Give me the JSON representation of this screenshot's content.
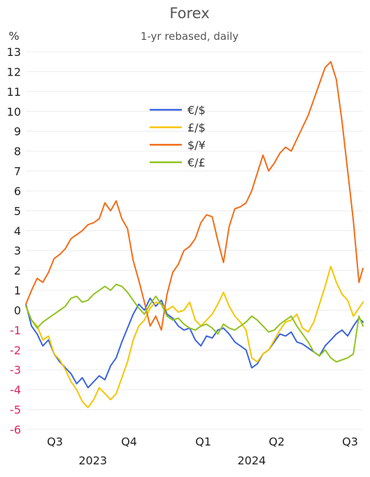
{
  "chart_data": {
    "type": "line",
    "title": "Forex",
    "subtitle": "1-yr rebased, daily",
    "ylabel": "%",
    "xlabel": "",
    "ylim": [
      -6,
      13
    ],
    "xlim": [
      "2023-07-10",
      "2024-08-31"
    ],
    "y_ticks": [
      13,
      12,
      11,
      10,
      9,
      8,
      7,
      6,
      5,
      4,
      3,
      2,
      1,
      0,
      -1,
      -2,
      -3,
      -4,
      -5,
      -6
    ],
    "negative_tick_color": "#e0245e",
    "x_quarter_labels": [
      {
        "label": "Q3",
        "x": "2023-08-15"
      },
      {
        "label": "Q4",
        "x": "2023-11-15"
      },
      {
        "label": "Q1",
        "x": "2024-02-15"
      },
      {
        "label": "Q2",
        "x": "2024-05-16"
      },
      {
        "label": "Q3",
        "x": "2024-08-15"
      }
    ],
    "x_year_labels": [
      {
        "label": "2023",
        "x": "2023-10-01"
      },
      {
        "label": "2024",
        "x": "2024-04-15"
      }
    ],
    "grid": true,
    "legend_position": "top-center",
    "series": [
      {
        "name": "€/$",
        "color": "#3a63e0",
        "points": [
          [
            "2023-07-10",
            0.3
          ],
          [
            "2023-07-17",
            -0.8
          ],
          [
            "2023-07-24",
            -1.2
          ],
          [
            "2023-07-31",
            -1.8
          ],
          [
            "2023-08-07",
            -1.5
          ],
          [
            "2023-08-14",
            -2.2
          ],
          [
            "2023-08-21",
            -2.6
          ],
          [
            "2023-08-28",
            -2.9
          ],
          [
            "2023-09-04",
            -3.2
          ],
          [
            "2023-09-11",
            -3.7
          ],
          [
            "2023-09-18",
            -3.4
          ],
          [
            "2023-09-25",
            -3.9
          ],
          [
            "2023-10-02",
            -3.6
          ],
          [
            "2023-10-09",
            -3.3
          ],
          [
            "2023-10-16",
            -3.5
          ],
          [
            "2023-10-23",
            -2.8
          ],
          [
            "2023-10-30",
            -2.4
          ],
          [
            "2023-11-06",
            -1.6
          ],
          [
            "2023-11-13",
            -0.9
          ],
          [
            "2023-11-20",
            -0.2
          ],
          [
            "2023-11-27",
            0.3
          ],
          [
            "2023-12-04",
            0.0
          ],
          [
            "2023-12-11",
            0.6
          ],
          [
            "2023-12-18",
            0.2
          ],
          [
            "2023-12-25",
            0.5
          ],
          [
            "2024-01-01",
            -0.2
          ],
          [
            "2024-01-08",
            -0.4
          ],
          [
            "2024-01-15",
            -0.8
          ],
          [
            "2024-01-22",
            -1.0
          ],
          [
            "2024-01-29",
            -0.9
          ],
          [
            "2024-02-05",
            -1.5
          ],
          [
            "2024-02-12",
            -1.8
          ],
          [
            "2024-02-19",
            -1.3
          ],
          [
            "2024-02-26",
            -1.4
          ],
          [
            "2024-03-04",
            -1.0
          ],
          [
            "2024-03-11",
            -0.9
          ],
          [
            "2024-03-18",
            -1.2
          ],
          [
            "2024-03-25",
            -1.6
          ],
          [
            "2024-04-01",
            -1.8
          ],
          [
            "2024-04-08",
            -2.0
          ],
          [
            "2024-04-15",
            -2.9
          ],
          [
            "2024-04-22",
            -2.7
          ],
          [
            "2024-04-29",
            -2.2
          ],
          [
            "2024-05-06",
            -2.0
          ],
          [
            "2024-05-13",
            -1.6
          ],
          [
            "2024-05-20",
            -1.2
          ],
          [
            "2024-05-27",
            -1.3
          ],
          [
            "2024-06-03",
            -1.1
          ],
          [
            "2024-06-10",
            -1.6
          ],
          [
            "2024-06-17",
            -1.7
          ],
          [
            "2024-06-24",
            -1.9
          ],
          [
            "2024-07-01",
            -2.1
          ],
          [
            "2024-07-08",
            -2.3
          ],
          [
            "2024-07-15",
            -1.8
          ],
          [
            "2024-07-22",
            -1.5
          ],
          [
            "2024-07-29",
            -1.2
          ],
          [
            "2024-08-05",
            -1.0
          ],
          [
            "2024-08-12",
            -1.3
          ],
          [
            "2024-08-19",
            -0.8
          ],
          [
            "2024-08-26",
            -0.4
          ],
          [
            "2024-08-31",
            -0.6
          ]
        ]
      },
      {
        "name": "£/$",
        "color": "#f7c400",
        "points": [
          [
            "2023-07-10",
            0.2
          ],
          [
            "2023-07-17",
            -0.5
          ],
          [
            "2023-07-24",
            -0.8
          ],
          [
            "2023-07-31",
            -1.5
          ],
          [
            "2023-08-07",
            -1.3
          ],
          [
            "2023-08-14",
            -2.2
          ],
          [
            "2023-08-21",
            -2.5
          ],
          [
            "2023-08-28",
            -3.0
          ],
          [
            "2023-09-04",
            -3.6
          ],
          [
            "2023-09-11",
            -4.0
          ],
          [
            "2023-09-18",
            -4.6
          ],
          [
            "2023-09-25",
            -4.9
          ],
          [
            "2023-10-02",
            -4.5
          ],
          [
            "2023-10-09",
            -3.9
          ],
          [
            "2023-10-16",
            -4.2
          ],
          [
            "2023-10-23",
            -4.5
          ],
          [
            "2023-10-30",
            -4.2
          ],
          [
            "2023-11-06",
            -3.4
          ],
          [
            "2023-11-13",
            -2.6
          ],
          [
            "2023-11-20",
            -1.5
          ],
          [
            "2023-11-27",
            -0.8
          ],
          [
            "2023-12-04",
            -0.5
          ],
          [
            "2023-12-11",
            0.1
          ],
          [
            "2023-12-18",
            0.4
          ],
          [
            "2023-12-25",
            0.3
          ],
          [
            "2024-01-01",
            0.0
          ],
          [
            "2024-01-08",
            0.2
          ],
          [
            "2024-01-15",
            -0.1
          ],
          [
            "2024-01-22",
            0.0
          ],
          [
            "2024-01-29",
            0.4
          ],
          [
            "2024-02-05",
            -0.5
          ],
          [
            "2024-02-12",
            -0.8
          ],
          [
            "2024-02-19",
            -0.5
          ],
          [
            "2024-02-26",
            -0.2
          ],
          [
            "2024-03-04",
            0.3
          ],
          [
            "2024-03-11",
            0.9
          ],
          [
            "2024-03-18",
            0.2
          ],
          [
            "2024-03-25",
            -0.3
          ],
          [
            "2024-04-01",
            -0.6
          ],
          [
            "2024-04-08",
            -1.0
          ],
          [
            "2024-04-15",
            -2.4
          ],
          [
            "2024-04-22",
            -2.6
          ],
          [
            "2024-04-29",
            -2.2
          ],
          [
            "2024-05-06",
            -2.0
          ],
          [
            "2024-05-13",
            -1.5
          ],
          [
            "2024-05-20",
            -1.0
          ],
          [
            "2024-05-27",
            -0.6
          ],
          [
            "2024-06-03",
            -0.5
          ],
          [
            "2024-06-10",
            -0.2
          ],
          [
            "2024-06-17",
            -0.9
          ],
          [
            "2024-06-24",
            -1.1
          ],
          [
            "2024-07-01",
            -0.6
          ],
          [
            "2024-07-08",
            0.3
          ],
          [
            "2024-07-15",
            1.2
          ],
          [
            "2024-07-22",
            2.2
          ],
          [
            "2024-07-29",
            1.4
          ],
          [
            "2024-08-05",
            0.8
          ],
          [
            "2024-08-12",
            0.5
          ],
          [
            "2024-08-19",
            -0.3
          ],
          [
            "2024-08-26",
            0.1
          ],
          [
            "2024-08-31",
            0.4
          ]
        ]
      },
      {
        "name": "$/¥",
        "color": "#f36c16",
        "points": [
          [
            "2023-07-10",
            0.3
          ],
          [
            "2023-07-17",
            1.0
          ],
          [
            "2023-07-24",
            1.6
          ],
          [
            "2023-07-31",
            1.4
          ],
          [
            "2023-08-07",
            1.9
          ],
          [
            "2023-08-14",
            2.6
          ],
          [
            "2023-08-21",
            2.8
          ],
          [
            "2023-08-28",
            3.1
          ],
          [
            "2023-09-04",
            3.6
          ],
          [
            "2023-09-11",
            3.8
          ],
          [
            "2023-09-18",
            4.0
          ],
          [
            "2023-09-25",
            4.3
          ],
          [
            "2023-10-02",
            4.4
          ],
          [
            "2023-10-09",
            4.6
          ],
          [
            "2023-10-16",
            5.4
          ],
          [
            "2023-10-23",
            5.0
          ],
          [
            "2023-10-30",
            5.5
          ],
          [
            "2023-11-06",
            4.6
          ],
          [
            "2023-11-13",
            4.1
          ],
          [
            "2023-11-20",
            2.5
          ],
          [
            "2023-11-27",
            1.5
          ],
          [
            "2023-12-04",
            0.4
          ],
          [
            "2023-12-11",
            -0.8
          ],
          [
            "2023-12-18",
            -0.3
          ],
          [
            "2023-12-25",
            -1.0
          ],
          [
            "2024-01-01",
            0.8
          ],
          [
            "2024-01-08",
            1.9
          ],
          [
            "2024-01-15",
            2.3
          ],
          [
            "2024-01-22",
            3.0
          ],
          [
            "2024-01-29",
            3.2
          ],
          [
            "2024-02-05",
            3.6
          ],
          [
            "2024-02-12",
            4.4
          ],
          [
            "2024-02-19",
            4.8
          ],
          [
            "2024-02-26",
            4.7
          ],
          [
            "2024-03-04",
            3.5
          ],
          [
            "2024-03-11",
            2.4
          ],
          [
            "2024-03-18",
            4.2
          ],
          [
            "2024-03-25",
            5.1
          ],
          [
            "2024-04-01",
            5.2
          ],
          [
            "2024-04-08",
            5.4
          ],
          [
            "2024-04-15",
            6.0
          ],
          [
            "2024-04-22",
            6.9
          ],
          [
            "2024-04-29",
            7.8
          ],
          [
            "2024-05-06",
            7.0
          ],
          [
            "2024-05-13",
            7.4
          ],
          [
            "2024-05-20",
            7.9
          ],
          [
            "2024-05-27",
            8.2
          ],
          [
            "2024-06-03",
            8.0
          ],
          [
            "2024-06-10",
            8.6
          ],
          [
            "2024-06-17",
            9.2
          ],
          [
            "2024-06-24",
            9.8
          ],
          [
            "2024-07-01",
            10.6
          ],
          [
            "2024-07-08",
            11.4
          ],
          [
            "2024-07-15",
            12.2
          ],
          [
            "2024-07-22",
            12.5
          ],
          [
            "2024-07-29",
            11.6
          ],
          [
            "2024-08-05",
            9.5
          ],
          [
            "2024-08-12",
            7.0
          ],
          [
            "2024-08-19",
            4.5
          ],
          [
            "2024-08-26",
            1.4
          ],
          [
            "2024-08-31",
            2.1
          ]
        ]
      },
      {
        "name": "€/£",
        "color": "#8fc31f",
        "points": [
          [
            "2023-07-10",
            0.2
          ],
          [
            "2023-07-17",
            -0.5
          ],
          [
            "2023-07-24",
            -0.9
          ],
          [
            "2023-07-31",
            -0.6
          ],
          [
            "2023-08-07",
            -0.4
          ],
          [
            "2023-08-14",
            -0.2
          ],
          [
            "2023-08-21",
            0.0
          ],
          [
            "2023-08-28",
            0.2
          ],
          [
            "2023-09-04",
            0.6
          ],
          [
            "2023-09-11",
            0.7
          ],
          [
            "2023-09-18",
            0.4
          ],
          [
            "2023-09-25",
            0.5
          ],
          [
            "2023-10-02",
            0.8
          ],
          [
            "2023-10-09",
            1.0
          ],
          [
            "2023-10-16",
            1.2
          ],
          [
            "2023-10-23",
            1.0
          ],
          [
            "2023-10-30",
            1.3
          ],
          [
            "2023-11-06",
            1.2
          ],
          [
            "2023-11-13",
            0.9
          ],
          [
            "2023-11-20",
            0.5
          ],
          [
            "2023-11-27",
            0.1
          ],
          [
            "2023-12-04",
            -0.2
          ],
          [
            "2023-12-11",
            0.3
          ],
          [
            "2023-12-18",
            0.7
          ],
          [
            "2023-12-25",
            0.3
          ],
          [
            "2024-01-01",
            -0.3
          ],
          [
            "2024-01-08",
            -0.5
          ],
          [
            "2024-01-15",
            -0.4
          ],
          [
            "2024-01-22",
            -0.7
          ],
          [
            "2024-01-29",
            -0.9
          ],
          [
            "2024-02-05",
            -1.0
          ],
          [
            "2024-02-12",
            -0.8
          ],
          [
            "2024-02-19",
            -0.7
          ],
          [
            "2024-02-26",
            -0.9
          ],
          [
            "2024-03-04",
            -1.2
          ],
          [
            "2024-03-11",
            -0.7
          ],
          [
            "2024-03-18",
            -0.9
          ],
          [
            "2024-03-25",
            -1.0
          ],
          [
            "2024-04-01",
            -0.8
          ],
          [
            "2024-04-08",
            -0.6
          ],
          [
            "2024-04-15",
            -0.3
          ],
          [
            "2024-04-22",
            -0.5
          ],
          [
            "2024-04-29",
            -0.8
          ],
          [
            "2024-05-06",
            -1.1
          ],
          [
            "2024-05-13",
            -1.0
          ],
          [
            "2024-05-20",
            -0.7
          ],
          [
            "2024-05-27",
            -0.5
          ],
          [
            "2024-06-03",
            -0.3
          ],
          [
            "2024-06-10",
            -0.8
          ],
          [
            "2024-06-17",
            -1.2
          ],
          [
            "2024-06-24",
            -1.6
          ],
          [
            "2024-07-01",
            -2.1
          ],
          [
            "2024-07-08",
            -2.3
          ],
          [
            "2024-07-15",
            -2.0
          ],
          [
            "2024-07-22",
            -2.4
          ],
          [
            "2024-07-29",
            -2.6
          ],
          [
            "2024-08-05",
            -2.5
          ],
          [
            "2024-08-12",
            -2.4
          ],
          [
            "2024-08-19",
            -2.2
          ],
          [
            "2024-08-26",
            -0.3
          ],
          [
            "2024-08-31",
            -0.8
          ]
        ]
      }
    ]
  }
}
